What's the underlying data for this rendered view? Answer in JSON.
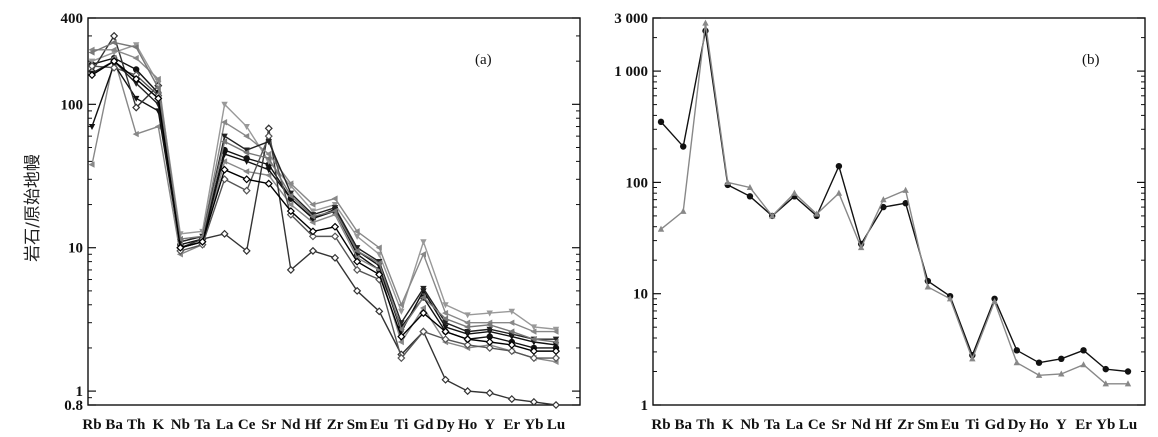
{
  "figure": {
    "ylabel": "岩石/原始地幔"
  },
  "chart_data": [
    {
      "type": "line",
      "panel_label": "(a)",
      "yscale": "log",
      "ylim": [
        0.8,
        400
      ],
      "yticks": [
        {
          "v": 400,
          "label": "400"
        },
        {
          "v": 100,
          "label": "100"
        },
        {
          "v": 10,
          "label": "10"
        },
        {
          "v": 1,
          "label": "1"
        },
        {
          "v": 0.8,
          "label": "0.8"
        }
      ],
      "categories": [
        "Rb",
        "Ba",
        "Th",
        "K",
        "Nb",
        "Ta",
        "La",
        "Ce",
        "Sr",
        "Nd",
        "Hf",
        "Zr",
        "Sm",
        "Eu",
        "Ti",
        "Gd",
        "Dy",
        "Ho",
        "Y",
        "Er",
        "Yb",
        "Lu"
      ],
      "x_tick_labels": [
        "Rb",
        "Ba",
        "Th",
        "K",
        "Nb",
        "Ta",
        "La",
        "Ce",
        "Sr",
        "Nd",
        "Hf",
        "Zr",
        "Sm",
        "Eu",
        "Ti",
        "Gd",
        "Dy",
        "Ho",
        "Y",
        "Er",
        "Yb",
        "Lu"
      ],
      "series": [
        {
          "color": "#111111",
          "marker": "circle",
          "values": [
            190,
            210,
            175,
            120,
            10.5,
            11.5,
            48,
            42,
            38,
            22,
            16,
            18,
            9,
            7,
            2.8,
            4.5,
            2.6,
            2.3,
            2.4,
            2.2,
            2.0,
            2.0
          ]
        },
        {
          "color": "#999999",
          "marker": "triangle-down",
          "values": [
            200,
            230,
            260,
            140,
            12.5,
            13,
            100,
            70,
            40,
            27,
            18,
            20,
            12,
            9,
            3.6,
            11,
            4,
            3.4,
            3.5,
            3.6,
            2.8,
            2.7
          ]
        },
        {
          "color": "#888888",
          "marker": "triangle-left",
          "values": [
            38,
            210,
            62,
            70,
            9,
            10.5,
            40,
            34,
            32,
            20,
            15,
            17,
            8.5,
            7,
            2.2,
            3.8,
            2.2,
            2,
            2.1,
            1.9,
            1.7,
            1.6
          ]
        },
        {
          "color": "#111111",
          "marker": "triangle-down",
          "values": [
            70,
            190,
            110,
            90,
            10,
            11,
            45,
            40,
            35,
            22,
            16,
            18.5,
            9.5,
            7.5,
            2.6,
            5,
            2.8,
            2.5,
            2.6,
            2.4,
            2.2,
            2.1
          ]
        },
        {
          "color": "#333333",
          "marker": "diamond",
          "values": [
            170,
            300,
            95,
            135,
            10,
            11.5,
            12.5,
            9.5,
            68,
            7,
            9.5,
            8.5,
            5,
            3.6,
            1.8,
            2.6,
            1.2,
            1,
            0.97,
            0.88,
            0.84,
            0.8
          ]
        },
        {
          "color": "#888888",
          "marker": "triangle-left",
          "values": [
            240,
            240,
            210,
            150,
            11,
            12,
            75,
            60,
            45,
            28,
            20,
            22,
            13,
            10,
            4,
            9,
            3.5,
            3,
            3,
            3,
            2.6,
            2.6
          ]
        },
        {
          "color": "#555555",
          "marker": "diamond",
          "values": [
            185,
            180,
            160,
            115,
            9.5,
            10.5,
            30,
            25,
            60,
            17,
            12,
            12,
            7,
            6,
            1.7,
            2.6,
            2.3,
            2.1,
            2.0,
            1.9,
            1.7,
            1.7
          ]
        },
        {
          "color": "#222222",
          "marker": "triangle-down",
          "values": [
            165,
            200,
            140,
            100,
            11,
            12,
            60,
            48,
            55,
            24,
            17,
            19,
            10,
            8,
            3,
            5.2,
            3,
            2.6,
            2.7,
            2.5,
            2.3,
            2.3
          ]
        },
        {
          "color": "#777777",
          "marker": "triangle-left",
          "values": [
            230,
            270,
            250,
            130,
            11.5,
            12,
            55,
            46,
            42,
            23,
            16.5,
            18,
            9.5,
            7.8,
            2.7,
            4.5,
            3.2,
            2.8,
            2.9,
            2.6,
            2.3,
            2.2
          ]
        },
        {
          "color": "#000000",
          "marker": "diamond",
          "values": [
            160,
            200,
            150,
            110,
            10,
            11,
            35,
            30,
            28,
            18,
            13,
            14,
            8,
            6.5,
            2.4,
            3.5,
            2.6,
            2.3,
            2.2,
            2.1,
            1.9,
            1.9
          ]
        }
      ]
    },
    {
      "type": "line",
      "panel_label": "(b)",
      "yscale": "log",
      "ylim": [
        1,
        3000
      ],
      "yticks": [
        {
          "v": 3000,
          "label": "3 000"
        },
        {
          "v": 1000,
          "label": "1 000"
        },
        {
          "v": 100,
          "label": "100"
        },
        {
          "v": 10,
          "label": "10"
        },
        {
          "v": 1,
          "label": "1"
        }
      ],
      "categories": [
        "Rb",
        "Ba",
        "Th",
        "K",
        "Nb",
        "Ta",
        "La",
        "Ce",
        "Sr",
        "Nd",
        "Hf",
        "Zr",
        "Sm",
        "Eu",
        "Ti",
        "Gd",
        "Dy",
        "Ho",
        "Y",
        "Er",
        "Yb",
        "Lu"
      ],
      "x_tick_labels": [
        "Rb",
        "Ba",
        "Th",
        "K",
        "Nb",
        "Ta",
        "La",
        "Ce",
        "Sr",
        "Nd",
        "Hf",
        "Zr",
        "Sm",
        "Eu",
        "Ti",
        "Gd",
        "Dy",
        "Ho",
        "Y",
        "Er",
        "Yb",
        "Lu"
      ],
      "series": [
        {
          "color": "#111111",
          "marker": "circle",
          "values": [
            350,
            210,
            2300,
            95,
            75,
            50,
            75,
            50,
            140,
            28,
            60,
            65,
            13,
            9.5,
            2.8,
            9,
            3.1,
            2.4,
            2.6,
            3.1,
            2.1,
            2.0
          ]
        },
        {
          "color": "#888888",
          "marker": "triangle-up",
          "values": [
            38,
            55,
            2700,
            100,
            90,
            50,
            80,
            52,
            80,
            26,
            70,
            85,
            11.5,
            9,
            2.6,
            8.5,
            2.4,
            1.85,
            1.9,
            2.3,
            1.55,
            1.55
          ]
        }
      ]
    }
  ]
}
